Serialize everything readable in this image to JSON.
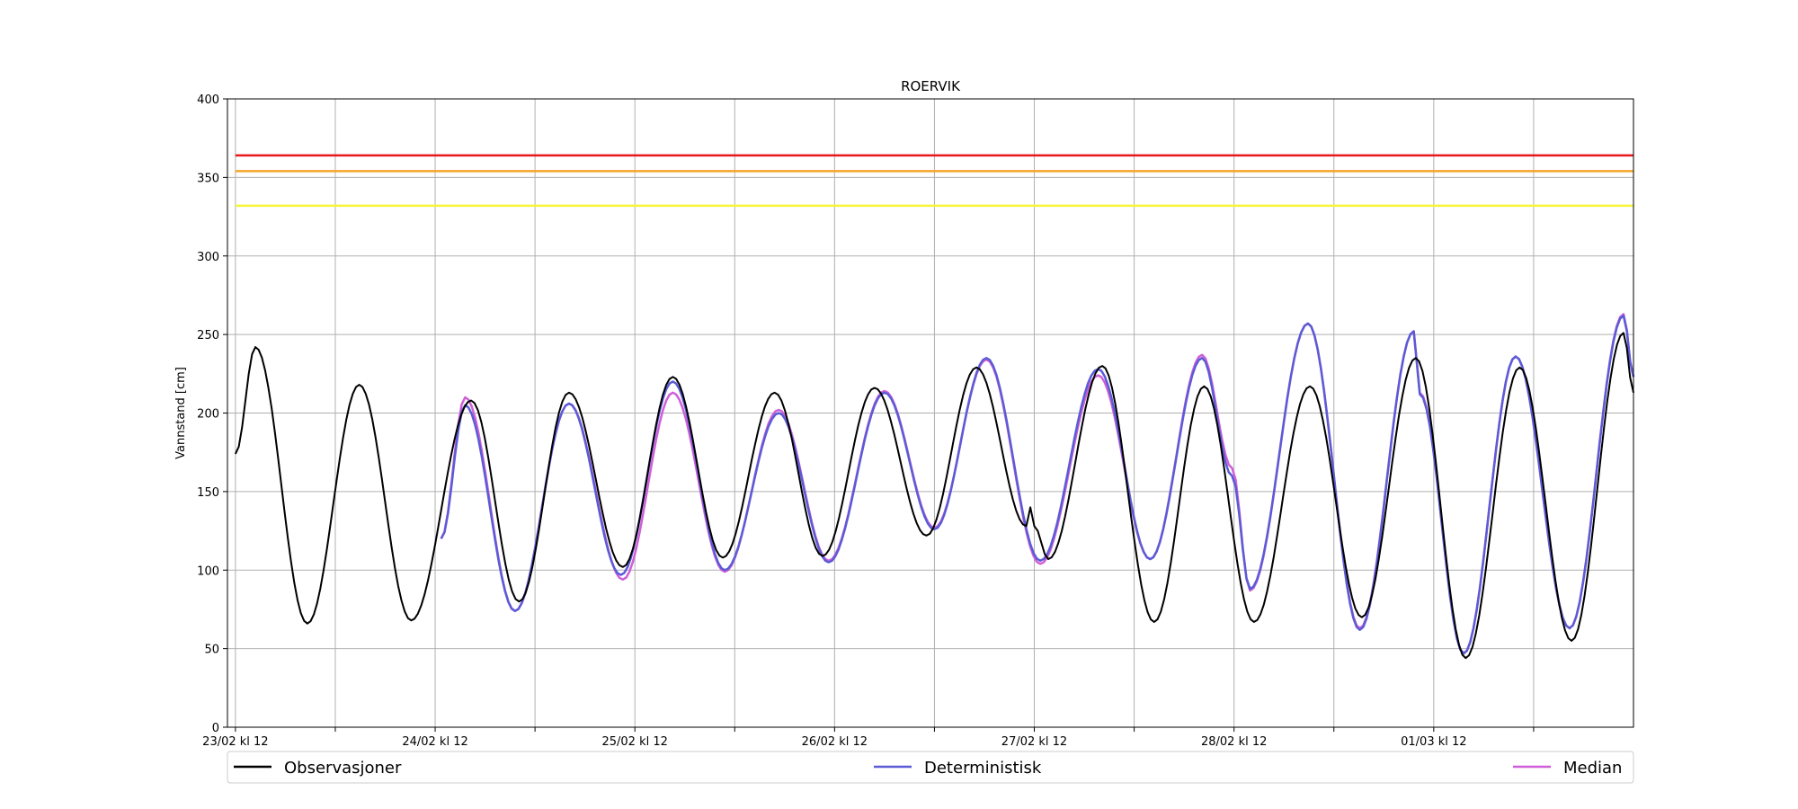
{
  "chart_data": {
    "type": "line",
    "title": "ROERVIK",
    "ylabel": "Vannstand [cm]",
    "xlabel": "",
    "ylim": [
      0,
      400
    ],
    "yticks": [
      0,
      50,
      100,
      150,
      200,
      250,
      300,
      350,
      400
    ],
    "x_unit": "days from 23/02 kl 12",
    "xlim": [
      -0.04,
      7.0
    ],
    "xticks": [
      {
        "x": 0,
        "label": "23/02 kl 12"
      },
      {
        "x": 0.5,
        "label": ""
      },
      {
        "x": 1,
        "label": "24/02 kl 12"
      },
      {
        "x": 1.5,
        "label": ""
      },
      {
        "x": 2,
        "label": "25/02 kl 12"
      },
      {
        "x": 2.5,
        "label": ""
      },
      {
        "x": 3,
        "label": "26/02 kl 12"
      },
      {
        "x": 3.5,
        "label": ""
      },
      {
        "x": 4,
        "label": "27/02 kl 12"
      },
      {
        "x": 4.5,
        "label": ""
      },
      {
        "x": 5,
        "label": "28/02 kl 12"
      },
      {
        "x": 5.5,
        "label": ""
      },
      {
        "x": 6,
        "label": "01/03 kl 12"
      },
      {
        "x": 6.5,
        "label": ""
      }
    ],
    "grid": true,
    "legend_position": "bottom",
    "thresholds": [
      {
        "y": 364,
        "color": "#e8191c"
      },
      {
        "y": 354,
        "color": "#f5a52a"
      },
      {
        "y": 332,
        "color": "#f5f53a"
      }
    ],
    "series": [
      {
        "name": "Observasjoner",
        "color": "#000000",
        "points": [
          [
            0.0,
            174
          ],
          [
            0.1,
            242
          ],
          [
            0.36,
            66
          ],
          [
            0.62,
            218
          ],
          [
            0.88,
            68
          ],
          [
            1.18,
            208
          ],
          [
            1.42,
            80
          ],
          [
            1.67,
            213
          ],
          [
            1.94,
            102
          ],
          [
            2.19,
            223
          ],
          [
            2.44,
            108
          ],
          [
            2.7,
            213
          ],
          [
            2.94,
            109
          ],
          [
            3.2,
            216
          ],
          [
            3.46,
            122
          ],
          [
            3.71,
            229
          ],
          [
            3.96,
            128
          ],
          [
            3.98,
            140
          ],
          [
            4.0,
            128
          ],
          [
            4.07,
            107
          ],
          [
            4.34,
            230
          ],
          [
            4.6,
            67
          ],
          [
            4.85,
            217
          ],
          [
            5.1,
            67
          ],
          [
            5.38,
            217
          ],
          [
            5.64,
            70
          ],
          [
            5.91,
            235
          ],
          [
            6.16,
            44
          ],
          [
            6.43,
            229
          ],
          [
            6.69,
            55
          ],
          [
            6.95,
            251
          ],
          [
            7.0,
            213
          ]
        ]
      },
      {
        "name": "Deterministisk",
        "color": "#5b5bd6",
        "points": [
          [
            1.03,
            120
          ],
          [
            1.15,
            205
          ],
          [
            1.4,
            74
          ],
          [
            1.67,
            206
          ],
          [
            1.93,
            97
          ],
          [
            2.19,
            220
          ],
          [
            2.45,
            100
          ],
          [
            2.72,
            200
          ],
          [
            2.97,
            105
          ],
          [
            3.25,
            213
          ],
          [
            3.5,
            126
          ],
          [
            3.76,
            235
          ],
          [
            4.03,
            106
          ],
          [
            4.32,
            228
          ],
          [
            4.58,
            107
          ],
          [
            4.84,
            235
          ],
          [
            4.99,
            160
          ],
          [
            5.08,
            88
          ],
          [
            5.37,
            257
          ],
          [
            5.63,
            62
          ],
          [
            5.9,
            252
          ],
          [
            5.93,
            212
          ],
          [
            6.15,
            47
          ],
          [
            6.41,
            236
          ],
          [
            6.68,
            63
          ],
          [
            6.95,
            262
          ],
          [
            7.0,
            223
          ]
        ]
      },
      {
        "name": "Median",
        "color": "#cf5fd8",
        "points": [
          [
            1.03,
            120
          ],
          [
            1.15,
            210
          ],
          [
            1.4,
            74
          ],
          [
            1.67,
            206
          ],
          [
            1.94,
            94
          ],
          [
            2.19,
            213
          ],
          [
            2.45,
            99
          ],
          [
            2.72,
            202
          ],
          [
            2.97,
            106
          ],
          [
            3.25,
            214
          ],
          [
            3.5,
            127
          ],
          [
            3.76,
            234
          ],
          [
            4.03,
            104
          ],
          [
            4.32,
            224
          ],
          [
            4.58,
            107
          ],
          [
            4.84,
            237
          ],
          [
            4.99,
            165
          ],
          [
            5.08,
            87
          ],
          [
            5.37,
            257
          ],
          [
            5.63,
            63
          ],
          [
            5.9,
            252
          ],
          [
            5.93,
            213
          ],
          [
            6.15,
            47
          ],
          [
            6.41,
            236
          ],
          [
            6.68,
            63
          ],
          [
            6.95,
            263
          ],
          [
            7.0,
            223
          ]
        ]
      }
    ]
  }
}
